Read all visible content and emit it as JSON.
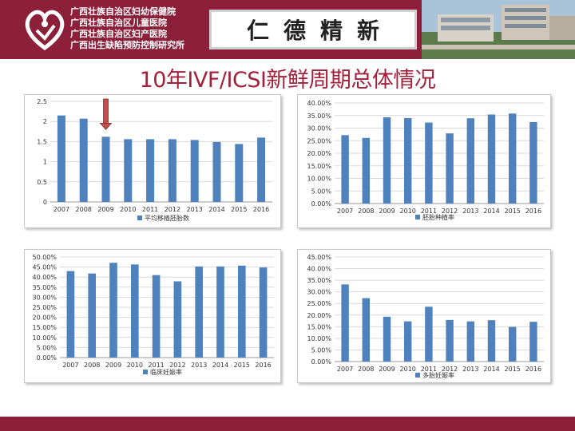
{
  "header": {
    "hospital_names": [
      "广西壮族自治区妇幼保健院",
      "广西壮族自治区儿童医院",
      "广西壮族自治区妇产医院",
      "广西出生缺陷预防控制研究所"
    ],
    "motto": "仁德精新",
    "colors": {
      "brand": "#8c1f3a",
      "title": "#a3203a",
      "bar": "#4f81bd",
      "marker": "#c0504d"
    }
  },
  "title": "10年IVF/ICSI新鲜周期总体情况",
  "chart_data": [
    {
      "type": "bar",
      "categories": [
        "2007",
        "2008",
        "2009",
        "2010",
        "2011",
        "2012",
        "2013",
        "2014",
        "2015",
        "2016"
      ],
      "series": [
        {
          "name": "平均移植胚胎数",
          "values": [
            2.15,
            2.07,
            1.62,
            1.56,
            1.56,
            1.56,
            1.54,
            1.49,
            1.44,
            1.6
          ]
        }
      ],
      "ylim": [
        0,
        2.5
      ],
      "yticks": [
        "0",
        "0.5",
        "1",
        "1.5",
        "2",
        "2.5"
      ],
      "grid": true,
      "legend": "bottom",
      "annotation": "arrow above 2009"
    },
    {
      "type": "bar",
      "categories": [
        "2007",
        "2008",
        "2009",
        "2010",
        "2011",
        "2012",
        "2013",
        "2014",
        "2015",
        "2016"
      ],
      "series": [
        {
          "name": "胚胎种植率",
          "values": [
            27.2,
            26.1,
            34.3,
            34.0,
            32.2,
            27.9,
            33.9,
            35.4,
            35.8,
            32.4
          ]
        }
      ],
      "ylim": [
        0,
        40
      ],
      "yticks": [
        "0.00%",
        "5.00%",
        "10.00%",
        "15.00%",
        "20.00%",
        "25.00%",
        "30.00%",
        "35.00%",
        "40.00%"
      ],
      "grid": true,
      "legend": "bottom"
    },
    {
      "type": "bar",
      "categories": [
        "2007",
        "2008",
        "2009",
        "2010",
        "2011",
        "2012",
        "2013",
        "2014",
        "2015",
        "2016"
      ],
      "series": [
        {
          "name": "临床妊娠率",
          "values": [
            43.0,
            41.8,
            47.1,
            46.3,
            41.0,
            37.9,
            45.3,
            45.3,
            45.7,
            44.8
          ]
        }
      ],
      "ylim": [
        0,
        50
      ],
      "yticks": [
        "0.00%",
        "5.00%",
        "10.00%",
        "15.00%",
        "20.00%",
        "25.00%",
        "30.00%",
        "35.00%",
        "40.00%",
        "45.00%",
        "50.00%"
      ],
      "grid": true,
      "legend": "bottom"
    },
    {
      "type": "bar",
      "categories": [
        "2007",
        "2008",
        "2009",
        "2010",
        "2011",
        "2012",
        "2013",
        "2014",
        "2015",
        "2016"
      ],
      "series": [
        {
          "name": "多胎妊娠率",
          "values": [
            33.2,
            27.3,
            19.3,
            17.3,
            23.6,
            17.9,
            17.3,
            17.8,
            14.9,
            17.1
          ]
        }
      ],
      "ylim": [
        0,
        45
      ],
      "yticks": [
        "0.00%",
        "5.00%",
        "10.00%",
        "15.00%",
        "20.00%",
        "25.00%",
        "30.00%",
        "35.00%",
        "40.00%",
        "45.00%"
      ],
      "grid": true,
      "legend": "bottom"
    }
  ]
}
